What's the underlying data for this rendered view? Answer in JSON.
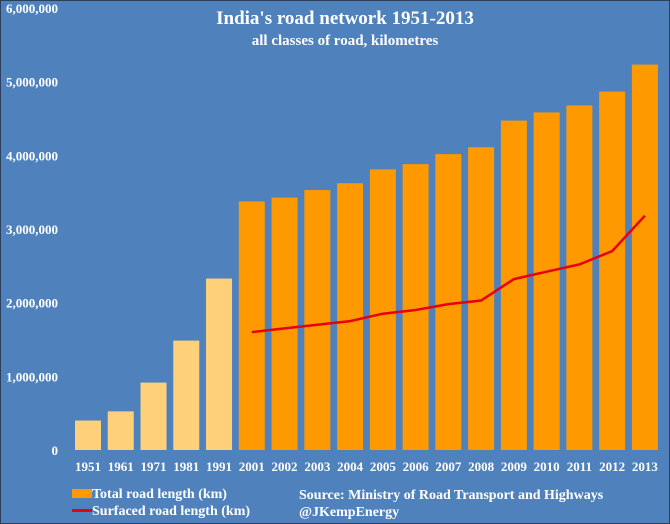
{
  "chart_data": {
    "type": "bar",
    "title": "India's road network 1951-2013",
    "subtitle": "all classes of  road, kilometres",
    "xlabel": "",
    "ylabel": "",
    "ylim": [
      0,
      6000000
    ],
    "yticks": [
      0,
      1000000,
      2000000,
      3000000,
      4000000,
      5000000,
      6000000
    ],
    "ytick_labels": [
      "0",
      "1,000,000",
      "2,000,000",
      "3,000,000",
      "4,000,000",
      "5,000,000",
      "6,000,000"
    ],
    "grid": false,
    "legend_position": "bottom-left",
    "categories": [
      "1951",
      "1961",
      "1971",
      "1981",
      "1991",
      "2001",
      "2002",
      "2003",
      "2004",
      "2005",
      "2006",
      "2007",
      "2008",
      "2009",
      "2010",
      "2011",
      "2012",
      "2013"
    ],
    "series": [
      {
        "name": "Total road length (km)",
        "type": "bar",
        "color": "#FF9900",
        "early_color": "#FFD07A",
        "values": [
          399942,
          524478,
          915010,
          1485421,
          2327362,
          3373520,
          3426600,
          3528654,
          3621507,
          3809156,
          3880651,
          4016401,
          4109592,
          4471510,
          4582439,
          4676838,
          4865394,
          5231922
        ]
      },
      {
        "name": "Surfaced road length (km)",
        "type": "line",
        "color": "#E8000B",
        "values": [
          null,
          null,
          null,
          null,
          null,
          1600000,
          1650000,
          1700000,
          1750000,
          1850000,
          1900000,
          1980000,
          2030000,
          2320000,
          2420000,
          2520000,
          2700000,
          3180000
        ]
      }
    ]
  },
  "source": "Source: Ministry of Road Transport and Highways",
  "credit": "@JKempEnergy"
}
